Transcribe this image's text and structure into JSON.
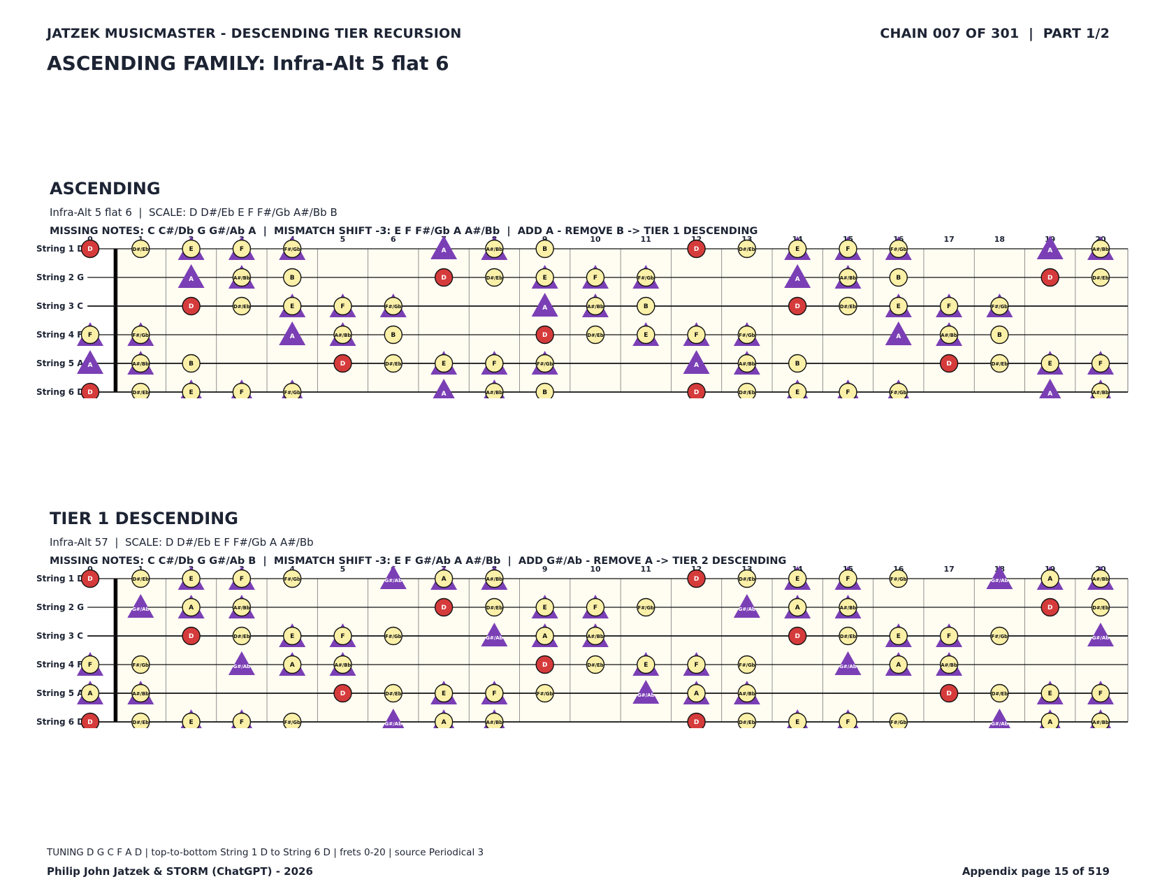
{
  "header": {
    "left": "JATZEK MUSICMASTER - DESCENDING TIER RECURSION",
    "right": "CHAIN 007 OF 301  |  PART 1/2",
    "family": "ASCENDING FAMILY: Infra-Alt 5 flat 6"
  },
  "colors": {
    "root": "#d63b3b",
    "note": "#fbf0a8",
    "shift": "#7b3fb5",
    "board": "#fffdf2",
    "ink": "#1c2333"
  },
  "frets": [
    "0",
    "1",
    "2",
    "3",
    "4",
    "5",
    "6",
    "7",
    "8",
    "9",
    "10",
    "11",
    "12",
    "13",
    "14",
    "15",
    "16",
    "17",
    "18",
    "19",
    "20"
  ],
  "sections": [
    {
      "title": "ASCENDING",
      "scale_line": "Infra-Alt 5 flat 6  |  SCALE: D D#/Eb E F F#/Gb A#/Bb B",
      "missing_line": "MISSING NOTES: C C#/Db G G#/Ab A  |  MISMATCH SHIFT -3: E F F#/Gb A A#/Bb  |  ADD A - REMOVE B -> TIER 1 DESCENDING",
      "strings": [
        {
          "label": "String 1 D",
          "notes": [
            {
              "f": 0,
              "n": "D",
              "r": true
            },
            {
              "f": 1,
              "n": "D#/Eb"
            },
            {
              "f": 2,
              "n": "E",
              "s": true
            },
            {
              "f": 3,
              "n": "F",
              "s": true
            },
            {
              "f": 4,
              "n": "F#/Gb",
              "s": true
            },
            {
              "f": 7,
              "n": "A",
              "t": true
            },
            {
              "f": 8,
              "n": "A#/Bb",
              "s": true
            },
            {
              "f": 9,
              "n": "B"
            },
            {
              "f": 12,
              "n": "D",
              "r": true
            },
            {
              "f": 13,
              "n": "D#/Eb"
            },
            {
              "f": 14,
              "n": "E",
              "s": true
            },
            {
              "f": 15,
              "n": "F",
              "s": true
            },
            {
              "f": 16,
              "n": "F#/Gb",
              "s": true
            },
            {
              "f": 19,
              "n": "A",
              "t": true
            },
            {
              "f": 20,
              "n": "A#/Bb",
              "s": true
            }
          ]
        },
        {
          "label": "String 2 G",
          "notes": [
            {
              "f": 2,
              "n": "A",
              "t": true
            },
            {
              "f": 3,
              "n": "A#/Bb",
              "s": true
            },
            {
              "f": 4,
              "n": "B"
            },
            {
              "f": 7,
              "n": "D",
              "r": true
            },
            {
              "f": 8,
              "n": "D#/Eb"
            },
            {
              "f": 9,
              "n": "E",
              "s": true
            },
            {
              "f": 10,
              "n": "F",
              "s": true
            },
            {
              "f": 11,
              "n": "F#/Gb",
              "s": true
            },
            {
              "f": 14,
              "n": "A",
              "t": true
            },
            {
              "f": 15,
              "n": "A#/Bb",
              "s": true
            },
            {
              "f": 16,
              "n": "B"
            },
            {
              "f": 19,
              "n": "D",
              "r": true
            },
            {
              "f": 20,
              "n": "D#/Eb"
            }
          ]
        },
        {
          "label": "String 3 C",
          "notes": [
            {
              "f": 2,
              "n": "D",
              "r": true
            },
            {
              "f": 3,
              "n": "D#/Eb"
            },
            {
              "f": 4,
              "n": "E",
              "s": true
            },
            {
              "f": 5,
              "n": "F",
              "s": true
            },
            {
              "f": 6,
              "n": "F#/Gb",
              "s": true
            },
            {
              "f": 9,
              "n": "A",
              "t": true
            },
            {
              "f": 10,
              "n": "A#/Bb",
              "s": true
            },
            {
              "f": 11,
              "n": "B"
            },
            {
              "f": 14,
              "n": "D",
              "r": true
            },
            {
              "f": 15,
              "n": "D#/Eb"
            },
            {
              "f": 16,
              "n": "E",
              "s": true
            },
            {
              "f": 17,
              "n": "F",
              "s": true
            },
            {
              "f": 18,
              "n": "F#/Gb",
              "s": true
            }
          ]
        },
        {
          "label": "String 4 F",
          "notes": [
            {
              "f": 0,
              "n": "F",
              "s": true
            },
            {
              "f": 1,
              "n": "F#/Gb",
              "s": true
            },
            {
              "f": 4,
              "n": "A",
              "t": true
            },
            {
              "f": 5,
              "n": "A#/Bb",
              "s": true
            },
            {
              "f": 6,
              "n": "B"
            },
            {
              "f": 9,
              "n": "D",
              "r": true
            },
            {
              "f": 10,
              "n": "D#/Eb"
            },
            {
              "f": 11,
              "n": "E",
              "s": true
            },
            {
              "f": 12,
              "n": "F",
              "s": true
            },
            {
              "f": 13,
              "n": "F#/Gb",
              "s": true
            },
            {
              "f": 16,
              "n": "A",
              "t": true
            },
            {
              "f": 17,
              "n": "A#/Bb",
              "s": true
            },
            {
              "f": 18,
              "n": "B"
            }
          ]
        },
        {
          "label": "String 5 A",
          "notes": [
            {
              "f": 0,
              "n": "A",
              "t": true
            },
            {
              "f": 1,
              "n": "A#/Bb",
              "s": true
            },
            {
              "f": 2,
              "n": "B"
            },
            {
              "f": 5,
              "n": "D",
              "r": true
            },
            {
              "f": 6,
              "n": "D#/Eb"
            },
            {
              "f": 7,
              "n": "E",
              "s": true
            },
            {
              "f": 8,
              "n": "F",
              "s": true
            },
            {
              "f": 9,
              "n": "F#/Gb",
              "s": true
            },
            {
              "f": 12,
              "n": "A",
              "t": true
            },
            {
              "f": 13,
              "n": "A#/Bb",
              "s": true
            },
            {
              "f": 14,
              "n": "B"
            },
            {
              "f": 17,
              "n": "D",
              "r": true
            },
            {
              "f": 18,
              "n": "D#/Eb"
            },
            {
              "f": 19,
              "n": "E",
              "s": true
            },
            {
              "f": 20,
              "n": "F",
              "s": true
            }
          ]
        },
        {
          "label": "String 6 D",
          "notes": [
            {
              "f": 0,
              "n": "D",
              "r": true
            },
            {
              "f": 1,
              "n": "D#/Eb"
            },
            {
              "f": 2,
              "n": "E",
              "s": true
            },
            {
              "f": 3,
              "n": "F",
              "s": true
            },
            {
              "f": 4,
              "n": "F#/Gb",
              "s": true
            },
            {
              "f": 7,
              "n": "A",
              "t": true
            },
            {
              "f": 8,
              "n": "A#/Bb",
              "s": true
            },
            {
              "f": 9,
              "n": "B"
            },
            {
              "f": 12,
              "n": "D",
              "r": true
            },
            {
              "f": 13,
              "n": "D#/Eb"
            },
            {
              "f": 14,
              "n": "E",
              "s": true
            },
            {
              "f": 15,
              "n": "F",
              "s": true
            },
            {
              "f": 16,
              "n": "F#/Gb",
              "s": true
            },
            {
              "f": 19,
              "n": "A",
              "t": true
            },
            {
              "f": 20,
              "n": "A#/Bb",
              "s": true
            }
          ]
        }
      ]
    },
    {
      "title": "TIER 1 DESCENDING",
      "scale_line": "Infra-Alt 57  |  SCALE: D D#/Eb E F F#/Gb A A#/Bb",
      "missing_line": "MISSING NOTES: C C#/Db G G#/Ab B  |  MISMATCH SHIFT -3: E F G#/Ab A A#/Bb  |  ADD G#/Ab - REMOVE A -> TIER 2 DESCENDING",
      "strings": [
        {
          "label": "String 1 D",
          "notes": [
            {
              "f": 0,
              "n": "D",
              "r": true
            },
            {
              "f": 1,
              "n": "D#/Eb"
            },
            {
              "f": 2,
              "n": "E",
              "s": true
            },
            {
              "f": 3,
              "n": "F",
              "s": true
            },
            {
              "f": 4,
              "n": "F#/Gb"
            },
            {
              "f": 6,
              "n": "G#/Ab",
              "t": true
            },
            {
              "f": 7,
              "n": "A",
              "s": true
            },
            {
              "f": 8,
              "n": "A#/Bb",
              "s": true
            },
            {
              "f": 12,
              "n": "D",
              "r": true
            },
            {
              "f": 13,
              "n": "D#/Eb"
            },
            {
              "f": 14,
              "n": "E",
              "s": true
            },
            {
              "f": 15,
              "n": "F",
              "s": true
            },
            {
              "f": 16,
              "n": "F#/Gb"
            },
            {
              "f": 18,
              "n": "G#/Ab",
              "t": true
            },
            {
              "f": 19,
              "n": "A",
              "s": true
            },
            {
              "f": 20,
              "n": "A#/Bb",
              "s": true
            }
          ]
        },
        {
          "label": "String 2 G",
          "notes": [
            {
              "f": 1,
              "n": "G#/Ab",
              "t": true
            },
            {
              "f": 2,
              "n": "A",
              "s": true
            },
            {
              "f": 3,
              "n": "A#/Bb",
              "s": true
            },
            {
              "f": 7,
              "n": "D",
              "r": true
            },
            {
              "f": 8,
              "n": "D#/Eb"
            },
            {
              "f": 9,
              "n": "E",
              "s": true
            },
            {
              "f": 10,
              "n": "F",
              "s": true
            },
            {
              "f": 11,
              "n": "F#/Gb"
            },
            {
              "f": 13,
              "n": "G#/Ab",
              "t": true
            },
            {
              "f": 14,
              "n": "A",
              "s": true
            },
            {
              "f": 15,
              "n": "A#/Bb",
              "s": true
            },
            {
              "f": 19,
              "n": "D",
              "r": true
            },
            {
              "f": 20,
              "n": "D#/Eb"
            }
          ]
        },
        {
          "label": "String 3 C",
          "notes": [
            {
              "f": 2,
              "n": "D",
              "r": true
            },
            {
              "f": 3,
              "n": "D#/Eb"
            },
            {
              "f": 4,
              "n": "E",
              "s": true
            },
            {
              "f": 5,
              "n": "F",
              "s": true
            },
            {
              "f": 6,
              "n": "F#/Gb"
            },
            {
              "f": 8,
              "n": "G#/Ab",
              "t": true
            },
            {
              "f": 9,
              "n": "A",
              "s": true
            },
            {
              "f": 10,
              "n": "A#/Bb",
              "s": true
            },
            {
              "f": 14,
              "n": "D",
              "r": true
            },
            {
              "f": 15,
              "n": "D#/Eb"
            },
            {
              "f": 16,
              "n": "E",
              "s": true
            },
            {
              "f": 17,
              "n": "F",
              "s": true
            },
            {
              "f": 18,
              "n": "F#/Gb"
            },
            {
              "f": 20,
              "n": "G#/Ab",
              "t": true
            }
          ]
        },
        {
          "label": "String 4 F",
          "notes": [
            {
              "f": 0,
              "n": "F",
              "s": true
            },
            {
              "f": 1,
              "n": "F#/Gb"
            },
            {
              "f": 3,
              "n": "G#/Ab",
              "t": true
            },
            {
              "f": 4,
              "n": "A",
              "s": true
            },
            {
              "f": 5,
              "n": "A#/Bb",
              "s": true
            },
            {
              "f": 9,
              "n": "D",
              "r": true
            },
            {
              "f": 10,
              "n": "D#/Eb"
            },
            {
              "f": 11,
              "n": "E",
              "s": true
            },
            {
              "f": 12,
              "n": "F",
              "s": true
            },
            {
              "f": 13,
              "n": "F#/Gb"
            },
            {
              "f": 15,
              "n": "G#/Ab",
              "t": true
            },
            {
              "f": 16,
              "n": "A",
              "s": true
            },
            {
              "f": 17,
              "n": "A#/Bb",
              "s": true
            }
          ]
        },
        {
          "label": "String 5 A",
          "notes": [
            {
              "f": 0,
              "n": "A",
              "s": true
            },
            {
              "f": 1,
              "n": "A#/Bb",
              "s": true
            },
            {
              "f": 5,
              "n": "D",
              "r": true
            },
            {
              "f": 6,
              "n": "D#/Eb"
            },
            {
              "f": 7,
              "n": "E",
              "s": true
            },
            {
              "f": 8,
              "n": "F",
              "s": true
            },
            {
              "f": 9,
              "n": "F#/Gb"
            },
            {
              "f": 11,
              "n": "G#/Ab",
              "t": true
            },
            {
              "f": 12,
              "n": "A",
              "s": true
            },
            {
              "f": 13,
              "n": "A#/Bb",
              "s": true
            },
            {
              "f": 17,
              "n": "D",
              "r": true
            },
            {
              "f": 18,
              "n": "D#/Eb"
            },
            {
              "f": 19,
              "n": "E",
              "s": true
            },
            {
              "f": 20,
              "n": "F",
              "s": true
            }
          ]
        },
        {
          "label": "String 6 D",
          "notes": [
            {
              "f": 0,
              "n": "D",
              "r": true
            },
            {
              "f": 1,
              "n": "D#/Eb"
            },
            {
              "f": 2,
              "n": "E",
              "s": true
            },
            {
              "f": 3,
              "n": "F",
              "s": true
            },
            {
              "f": 4,
              "n": "F#/Gb"
            },
            {
              "f": 6,
              "n": "G#/Ab",
              "t": true
            },
            {
              "f": 7,
              "n": "A",
              "s": true
            },
            {
              "f": 8,
              "n": "A#/Bb",
              "s": true
            },
            {
              "f": 12,
              "n": "D",
              "r": true
            },
            {
              "f": 13,
              "n": "D#/Eb"
            },
            {
              "f": 14,
              "n": "E",
              "s": true
            },
            {
              "f": 15,
              "n": "F",
              "s": true
            },
            {
              "f": 16,
              "n": "F#/Gb"
            },
            {
              "f": 18,
              "n": "G#/Ab",
              "t": true
            },
            {
              "f": 19,
              "n": "A",
              "s": true
            },
            {
              "f": 20,
              "n": "A#/Bb",
              "s": true
            }
          ]
        }
      ]
    }
  ],
  "footer": {
    "source": "TUNING D G C F A D | top-to-bottom String 1 D to String 6 D | frets 0-20 | source Periodical 3",
    "author": "Philip John Jatzek & STORM (ChatGPT) - 2026",
    "page": "Appendix page 15 of 519"
  }
}
